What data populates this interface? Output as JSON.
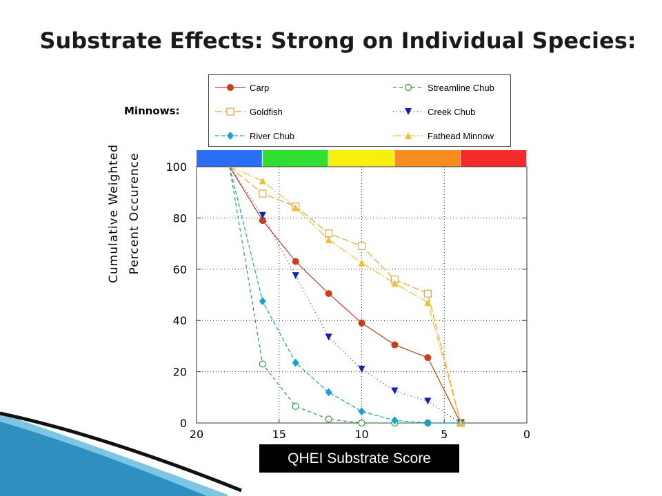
{
  "slide": {
    "title": "Substrate Effects:  Strong on Individual Species:",
    "group_label": "Minnows:",
    "xlabel_box": "QHEI Substrate Score",
    "ylabel_line1": "Cumulative Weighted",
    "ylabel_line2": "Percent Occurence"
  },
  "chart_data": {
    "type": "line",
    "xlabel": "QHEI Substrate Score",
    "ylabel": "Cumulative Weighted Percent Occurence",
    "xlim": [
      20,
      0
    ],
    "ylim": [
      0,
      100
    ],
    "x_ticks": [
      20,
      15,
      10,
      5,
      0
    ],
    "y_ticks": [
      0,
      20,
      40,
      60,
      80,
      100
    ],
    "grid": true,
    "legend_position": "top",
    "color_bands": [
      "#2a6ef4",
      "#30e030",
      "#f5f00d",
      "#f98c20",
      "#f52a2a"
    ],
    "series": [
      {
        "name": "Carp",
        "color": "#c8401a",
        "dash": "",
        "marker": "circle-filled",
        "points": [
          [
            18,
            100
          ],
          [
            16,
            79
          ],
          [
            14,
            63
          ],
          [
            12,
            50.5
          ],
          [
            10,
            39
          ],
          [
            8,
            30.5
          ],
          [
            6,
            25.5
          ],
          [
            4,
            0
          ]
        ]
      },
      {
        "name": "Streamline Chub",
        "color": "#2a9c3a",
        "dash": "5,4",
        "marker": "circle-open",
        "points": [
          [
            18,
            100
          ],
          [
            16,
            23
          ],
          [
            14,
            6.5
          ],
          [
            12,
            1.5
          ],
          [
            10,
            0
          ],
          [
            8,
            0
          ],
          [
            6,
            0
          ],
          [
            4,
            0
          ]
        ]
      },
      {
        "name": "Goldfish",
        "color": "#e8a230",
        "dash": "10,4",
        "marker": "square-open",
        "points": [
          [
            18,
            100
          ],
          [
            16,
            89.5
          ],
          [
            14,
            84.5
          ],
          [
            12,
            74
          ],
          [
            10,
            69
          ],
          [
            8,
            56
          ],
          [
            6,
            50.5
          ],
          [
            4,
            0
          ]
        ]
      },
      {
        "name": "Creek Chub",
        "color": "#1020c0",
        "dash": "1,4",
        "marker": "triangle-down",
        "points": [
          [
            18,
            100
          ],
          [
            16,
            81
          ],
          [
            14,
            57.5
          ],
          [
            12,
            33.5
          ],
          [
            10,
            21
          ],
          [
            8,
            12.5
          ],
          [
            6,
            8.5
          ],
          [
            4,
            0
          ]
        ]
      },
      {
        "name": "River Chub",
        "color": "#1aa0d8",
        "dash": "6,3",
        "marker": "diamond",
        "points": [
          [
            18,
            100
          ],
          [
            16,
            47.5
          ],
          [
            14,
            23.5
          ],
          [
            12,
            12
          ],
          [
            10,
            4.5
          ],
          [
            8,
            1
          ],
          [
            6,
            0
          ],
          [
            4,
            0
          ]
        ]
      },
      {
        "name": "Fathead Minnow",
        "color": "#f0c030",
        "dash": "12,3,2,3",
        "marker": "triangle-up",
        "points": [
          [
            18,
            100
          ],
          [
            16,
            94.5
          ],
          [
            14,
            84
          ],
          [
            12,
            71.5
          ],
          [
            10,
            62.5
          ],
          [
            8,
            54.5
          ],
          [
            6,
            47
          ],
          [
            4,
            0
          ]
        ]
      }
    ]
  }
}
